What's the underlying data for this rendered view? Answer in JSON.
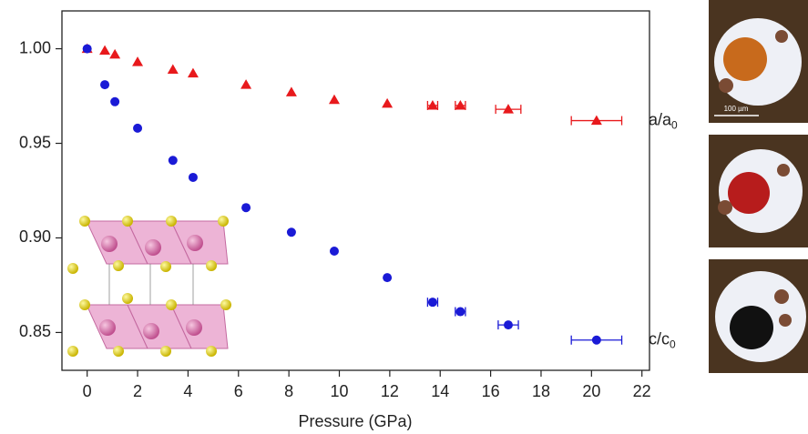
{
  "chart_data": {
    "type": "scatter",
    "x_label": "Pressure (GPa)",
    "xlim": [
      -1,
      22.3
    ],
    "ylim": [
      0.83,
      1.02
    ],
    "xticks": [
      0,
      2,
      4,
      6,
      8,
      10,
      12,
      14,
      16,
      18,
      20,
      22
    ],
    "yticks": [
      {
        "value": 0.85,
        "label": "0.85"
      },
      {
        "value": 0.9,
        "label": "0.90"
      },
      {
        "value": 0.95,
        "label": "0.95"
      },
      {
        "value": 1.0,
        "label": "1.00"
      }
    ],
    "series": [
      {
        "label": {
          "text": "a/a",
          "sub": "0"
        },
        "color": "#e8191c",
        "marker": "triangle",
        "x": [
          0,
          0.7,
          1.1,
          2.0,
          3.4,
          4.2,
          6.3,
          8.1,
          9.8,
          11.9,
          13.7,
          14.8,
          16.7,
          20.2
        ],
        "values": [
          1.0,
          0.999,
          0.997,
          0.993,
          0.989,
          0.987,
          0.981,
          0.977,
          0.973,
          0.971,
          0.97,
          0.97,
          0.968,
          0.962
        ],
        "xerr": [
          0,
          0,
          0,
          0,
          0,
          0,
          0,
          0,
          0,
          0,
          0.2,
          0.2,
          0.5,
          1.0
        ]
      },
      {
        "label": {
          "text": "c/c",
          "sub": "0"
        },
        "color": "#1a1ad6",
        "marker": "circle",
        "x": [
          0,
          0.7,
          1.1,
          2.0,
          3.4,
          4.2,
          6.3,
          8.1,
          9.8,
          11.9,
          13.7,
          14.8,
          16.7,
          20.2
        ],
        "values": [
          1.0,
          0.981,
          0.972,
          0.958,
          0.941,
          0.932,
          0.916,
          0.903,
          0.893,
          0.879,
          0.866,
          0.861,
          0.854,
          0.846
        ],
        "xerr": [
          0,
          0,
          0,
          0,
          0,
          0,
          0,
          0,
          0,
          0,
          0.2,
          0.2,
          0.4,
          1.0
        ]
      }
    ],
    "scale_bar": "100 µm"
  }
}
